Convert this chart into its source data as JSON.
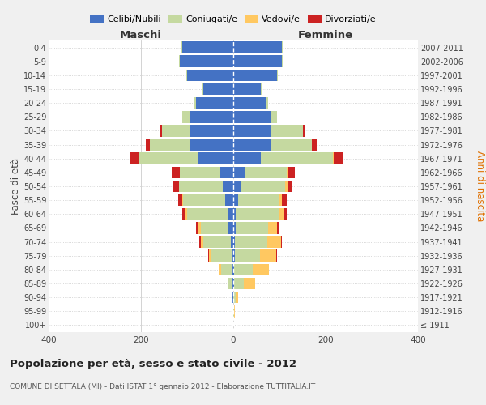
{
  "age_groups": [
    "100+",
    "95-99",
    "90-94",
    "85-89",
    "80-84",
    "75-79",
    "70-74",
    "65-69",
    "60-64",
    "55-59",
    "50-54",
    "45-49",
    "40-44",
    "35-39",
    "30-34",
    "25-29",
    "20-24",
    "15-19",
    "10-14",
    "5-9",
    "0-4"
  ],
  "birth_years": [
    "≤ 1911",
    "1912-1916",
    "1917-1921",
    "1922-1926",
    "1927-1931",
    "1932-1936",
    "1937-1941",
    "1942-1946",
    "1947-1951",
    "1952-1956",
    "1957-1961",
    "1962-1966",
    "1967-1971",
    "1972-1976",
    "1977-1981",
    "1982-1986",
    "1987-1991",
    "1992-1996",
    "1997-2001",
    "2002-2006",
    "2007-2011"
  ],
  "colors": {
    "celibi": "#4472C4",
    "coniugati": "#c5d9a0",
    "vedovi": "#ffc861",
    "divorziati": "#cc2222"
  },
  "males": {
    "celibi": [
      0,
      0,
      1,
      2,
      2,
      4,
      5,
      10,
      10,
      18,
      22,
      30,
      75,
      95,
      95,
      95,
      80,
      65,
      100,
      115,
      110
    ],
    "coniugati": [
      0,
      0,
      3,
      8,
      25,
      45,
      60,
      60,
      90,
      90,
      95,
      85,
      130,
      85,
      60,
      15,
      5,
      1,
      2,
      2,
      2
    ],
    "vedovi": [
      0,
      0,
      0,
      2,
      4,
      4,
      5,
      5,
      3,
      2,
      1,
      0,
      0,
      0,
      0,
      0,
      0,
      0,
      0,
      0,
      0
    ],
    "divorziati": [
      0,
      0,
      0,
      0,
      0,
      2,
      3,
      5,
      8,
      10,
      12,
      18,
      18,
      10,
      5,
      0,
      0,
      0,
      0,
      0,
      0
    ]
  },
  "females": {
    "celibi": [
      0,
      0,
      0,
      2,
      2,
      3,
      3,
      5,
      5,
      10,
      18,
      25,
      60,
      80,
      80,
      80,
      70,
      60,
      95,
      105,
      105
    ],
    "coniugati": [
      0,
      2,
      5,
      20,
      40,
      55,
      70,
      70,
      95,
      90,
      95,
      90,
      155,
      90,
      70,
      15,
      5,
      2,
      2,
      2,
      2
    ],
    "vedovi": [
      0,
      2,
      5,
      25,
      35,
      35,
      30,
      20,
      8,
      5,
      4,
      3,
      2,
      0,
      0,
      0,
      0,
      0,
      0,
      0,
      0
    ],
    "divorziati": [
      0,
      0,
      0,
      0,
      0,
      2,
      2,
      3,
      8,
      10,
      10,
      15,
      20,
      10,
      5,
      0,
      0,
      0,
      0,
      0,
      0
    ]
  },
  "xlim": 400,
  "title": "Popolazione per età, sesso e stato civile - 2012",
  "subtitle": "COMUNE DI SETTALA (MI) - Dati ISTAT 1° gennaio 2012 - Elaborazione TUTTITALIA.IT",
  "xlabel_left": "Maschi",
  "xlabel_right": "Femmine",
  "ylabel_left": "Fasce di età",
  "ylabel_right": "Anni di nascita",
  "bg_color": "#f0f0f0",
  "plot_bg": "#ffffff"
}
